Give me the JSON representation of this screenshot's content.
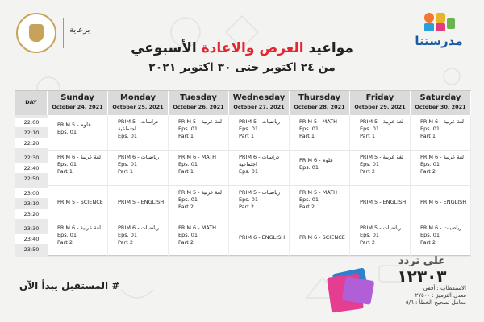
{
  "header": {
    "sponsor_label": "برعاية",
    "logo_text": "مدرستنا",
    "title_prefix": "مواعيد",
    "title_highlight": "العرض والاعادة",
    "title_suffix": "الأسبوعي",
    "subtitle": "من ٢٤ اكتوبر حتى ٣٠ اكتوبر ٢٠٢١"
  },
  "schedule": {
    "day_label": "DAY",
    "times": [
      "22:00",
      "22:10",
      "22:20",
      "22:30",
      "22:40",
      "22:50",
      "23:00",
      "23:10",
      "23:20",
      "23:30",
      "23:40",
      "23:50"
    ],
    "days": [
      {
        "name": "Sunday",
        "date": "October 24, 2021"
      },
      {
        "name": "Monday",
        "date": "October 25, 2021"
      },
      {
        "name": "Tuesday",
        "date": "October 26, 2021"
      },
      {
        "name": "Wednesday",
        "date": "October 27, 2021"
      },
      {
        "name": "Thursday",
        "date": "October 28, 2021"
      },
      {
        "name": "Friday",
        "date": "October 29, 2021"
      },
      {
        "name": "Saturday",
        "date": "October 30, 2021"
      }
    ],
    "rows": [
      [
        [
          "PRIM 5 - علوم",
          "Eps. 01",
          ""
        ],
        [
          "PRIM 5 - دراسات",
          "اجتماعية",
          "Eps. 01"
        ],
        [
          "PRIM 5 - لغة عربية",
          "Eps. 01",
          "Part 1"
        ],
        [
          "PRIM 5 - رياضيات",
          "Eps. 01",
          "Part 1"
        ],
        [
          "PRIM 5 - MATH",
          "Eps. 01",
          "Part 1"
        ],
        [
          "PRIM 5 - لغة عربية",
          "Eps. 01",
          "Part 1"
        ],
        [
          "PRIM 6 - لغة عربية",
          "Eps. 01",
          "Part 1"
        ]
      ],
      [
        [
          "PRIM 6 - لغة عربية",
          "Eps. 01",
          "Part 1"
        ],
        [
          "PRIM 6 - رياضيات",
          "Eps. 01",
          "Part 1"
        ],
        [
          "PRIM 6 - MATH",
          "Eps. 01",
          "Part 1"
        ],
        [
          "PRIM 6 - دراسات",
          "اجتماعية",
          "Eps. 01"
        ],
        [
          "PRIM 6 - علوم",
          "Eps. 01",
          ""
        ],
        [
          "PRIM 5 - لغة عربية",
          "Eps. 01",
          "Part 2"
        ],
        [
          "PRIM 6 - لغة عربية",
          "Eps. 01",
          "Part 2"
        ]
      ],
      [
        [
          "PRIM 5 - SCIENCE",
          "",
          ""
        ],
        [
          "PRIM 5 - ENGLISH",
          "",
          ""
        ],
        [
          "PRIM 5 - لغة عربية",
          "Eps. 01",
          "Part 2"
        ],
        [
          "PRIM 5 - رياضيات",
          "Eps. 01",
          "Part 2"
        ],
        [
          "PRIM 5 - MATH",
          "Eps. 01",
          "Part 2"
        ],
        [
          "PRIM 5 - ENGLISH",
          "",
          ""
        ],
        [
          "PRIM 6 - ENGLISH",
          "",
          ""
        ]
      ],
      [
        [
          "PRIM 6 - لغة عربية",
          "Eps. 01",
          "Part 2"
        ],
        [
          "PRIM 6 - رياضيات",
          "Eps. 01",
          "Part 2"
        ],
        [
          "PRIM 6 - MATH",
          "Eps. 01",
          "Part 2"
        ],
        [
          "PRIM 6 - ENGLISH",
          "",
          ""
        ],
        [
          "PRIM 6 - SCIENCE",
          "",
          ""
        ],
        [
          "PRIM 5 - رياضيات",
          "Eps. 01",
          "Part 2"
        ],
        [
          "PRIM 6 - رياضيات",
          "Eps. 01",
          "Part 2"
        ]
      ]
    ]
  },
  "footer": {
    "slogan": "# المستقبل يبدأ الآن",
    "freq_label": "على تردد",
    "freq_number": "١٢٣٠٣",
    "polarization": "الاستقطاب : أفقي",
    "symbol_rate": "معدل الترميز : ٢٧٥٠٠",
    "fec": "معامل تصحيح الخطأ : ٥/٦"
  },
  "colors": {
    "accent_red": "#e3262f",
    "header_gray": "#dadada",
    "brand_blue": "#1a5aa3"
  }
}
